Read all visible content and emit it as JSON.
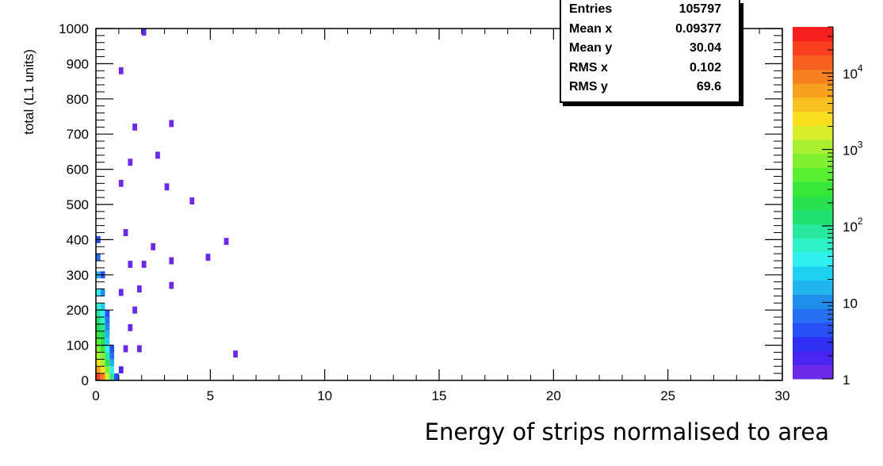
{
  "chart_data": {
    "type": "heatmap",
    "title": "",
    "xlabel": "Energy of strips normalised to area",
    "ylabel": "total (L1 units)",
    "xlim": [
      0,
      30
    ],
    "ylim": [
      0,
      1000
    ],
    "x_ticks": [
      "0",
      "5",
      "10",
      "15",
      "20",
      "25",
      "30"
    ],
    "y_ticks": [
      "0",
      "100",
      "200",
      "300",
      "400",
      "500",
      "600",
      "700",
      "800",
      "900",
      "1000"
    ],
    "z_scale": "log",
    "z_range": [
      1,
      40000
    ],
    "colorbar_ticks": [
      {
        "value": 1,
        "base": "1",
        "exp": ""
      },
      {
        "value": 10,
        "base": "10",
        "exp": ""
      },
      {
        "value": 100,
        "base": "10",
        "exp": "2"
      },
      {
        "value": 1000,
        "base": "10",
        "exp": "3"
      },
      {
        "value": 10000,
        "base": "10",
        "exp": "4"
      }
    ],
    "colorbar_colors": [
      "#6a2ae8",
      "#4a24f0",
      "#3030f5",
      "#2850f5",
      "#2470f0",
      "#1e90ec",
      "#22b4ec",
      "#20d0f0",
      "#30f0f0",
      "#30f0c8",
      "#28e8a0",
      "#20e070",
      "#28e050",
      "#38e838",
      "#58f030",
      "#80f030",
      "#a8f030",
      "#d8ec2a",
      "#f8e020",
      "#f8c020",
      "#f8a020",
      "#f88020",
      "#f86020",
      "#f84020",
      "#f82020"
    ],
    "grid": false,
    "legend": "none",
    "cells": [
      {
        "x": 0.1,
        "y": 10,
        "z": 20000
      },
      {
        "x": 0.3,
        "y": 10,
        "z": 8000
      },
      {
        "x": 0.5,
        "y": 10,
        "z": 1500
      },
      {
        "x": 0.7,
        "y": 10,
        "z": 100
      },
      {
        "x": 0.9,
        "y": 10,
        "z": 5
      },
      {
        "x": 0.1,
        "y": 30,
        "z": 6000
      },
      {
        "x": 0.3,
        "y": 30,
        "z": 3000
      },
      {
        "x": 0.5,
        "y": 30,
        "z": 600
      },
      {
        "x": 0.7,
        "y": 30,
        "z": 40
      },
      {
        "x": 1.1,
        "y": 30,
        "z": 2
      },
      {
        "x": 0.1,
        "y": 50,
        "z": 2500
      },
      {
        "x": 0.3,
        "y": 50,
        "z": 1200
      },
      {
        "x": 0.5,
        "y": 50,
        "z": 200
      },
      {
        "x": 0.7,
        "y": 50,
        "z": 15
      },
      {
        "x": 0.1,
        "y": 70,
        "z": 1200
      },
      {
        "x": 0.3,
        "y": 70,
        "z": 600
      },
      {
        "x": 0.5,
        "y": 70,
        "z": 80
      },
      {
        "x": 0.7,
        "y": 70,
        "z": 8
      },
      {
        "x": 0.1,
        "y": 90,
        "z": 700
      },
      {
        "x": 0.3,
        "y": 90,
        "z": 350
      },
      {
        "x": 0.5,
        "y": 90,
        "z": 40
      },
      {
        "x": 0.7,
        "y": 90,
        "z": 5
      },
      {
        "x": 0.1,
        "y": 110,
        "z": 450
      },
      {
        "x": 0.3,
        "y": 110,
        "z": 200
      },
      {
        "x": 0.5,
        "y": 110,
        "z": 25
      },
      {
        "x": 0.1,
        "y": 130,
        "z": 300
      },
      {
        "x": 0.3,
        "y": 130,
        "z": 120
      },
      {
        "x": 0.5,
        "y": 130,
        "z": 15
      },
      {
        "x": 0.1,
        "y": 150,
        "z": 200
      },
      {
        "x": 0.3,
        "y": 150,
        "z": 80
      },
      {
        "x": 0.5,
        "y": 150,
        "z": 10
      },
      {
        "x": 0.1,
        "y": 170,
        "z": 130
      },
      {
        "x": 0.3,
        "y": 170,
        "z": 50
      },
      {
        "x": 0.5,
        "y": 170,
        "z": 6
      },
      {
        "x": 0.1,
        "y": 190,
        "z": 90
      },
      {
        "x": 0.3,
        "y": 190,
        "z": 30
      },
      {
        "x": 0.5,
        "y": 190,
        "z": 5
      },
      {
        "x": 0.1,
        "y": 210,
        "z": 60
      },
      {
        "x": 0.3,
        "y": 210,
        "z": 20
      },
      {
        "x": 0.1,
        "y": 250,
        "z": 30
      },
      {
        "x": 0.3,
        "y": 250,
        "z": 10
      },
      {
        "x": 0.1,
        "y": 300,
        "z": 15
      },
      {
        "x": 0.3,
        "y": 300,
        "z": 5
      },
      {
        "x": 0.1,
        "y": 350,
        "z": 8
      },
      {
        "x": 0.1,
        "y": 400,
        "z": 5
      },
      {
        "x": 1.3,
        "y": 90,
        "z": 1
      },
      {
        "x": 1.9,
        "y": 90,
        "z": 1
      },
      {
        "x": 1.5,
        "y": 150,
        "z": 1
      },
      {
        "x": 1.7,
        "y": 200,
        "z": 1
      },
      {
        "x": 1.1,
        "y": 250,
        "z": 1
      },
      {
        "x": 1.9,
        "y": 260,
        "z": 1
      },
      {
        "x": 1.5,
        "y": 330,
        "z": 1
      },
      {
        "x": 2.1,
        "y": 330,
        "z": 1
      },
      {
        "x": 1.3,
        "y": 420,
        "z": 1
      },
      {
        "x": 1.1,
        "y": 560,
        "z": 1
      },
      {
        "x": 1.5,
        "y": 620,
        "z": 1
      },
      {
        "x": 1.7,
        "y": 720,
        "z": 1
      },
      {
        "x": 1.1,
        "y": 880,
        "z": 1
      },
      {
        "x": 2.5,
        "y": 380,
        "z": 1
      },
      {
        "x": 2.7,
        "y": 640,
        "z": 1
      },
      {
        "x": 3.1,
        "y": 550,
        "z": 1
      },
      {
        "x": 3.3,
        "y": 730,
        "z": 1
      },
      {
        "x": 3.3,
        "y": 340,
        "z": 1
      },
      {
        "x": 4.2,
        "y": 510,
        "z": 1
      },
      {
        "x": 4.9,
        "y": 350,
        "z": 1
      },
      {
        "x": 5.7,
        "y": 395,
        "z": 1
      },
      {
        "x": 6.1,
        "y": 75,
        "z": 1
      },
      {
        "x": 3.3,
        "y": 270,
        "z": 1
      },
      {
        "x": 2.1,
        "y": 990,
        "z": 1
      }
    ]
  },
  "stats": [
    {
      "label": "Entries",
      "value": "105797"
    },
    {
      "label": "Mean x",
      "value": "0.09377"
    },
    {
      "label": "Mean y",
      "value": "30.04"
    },
    {
      "label": "RMS x",
      "value": "0.102"
    },
    {
      "label": "RMS y",
      "value": "69.6"
    }
  ]
}
